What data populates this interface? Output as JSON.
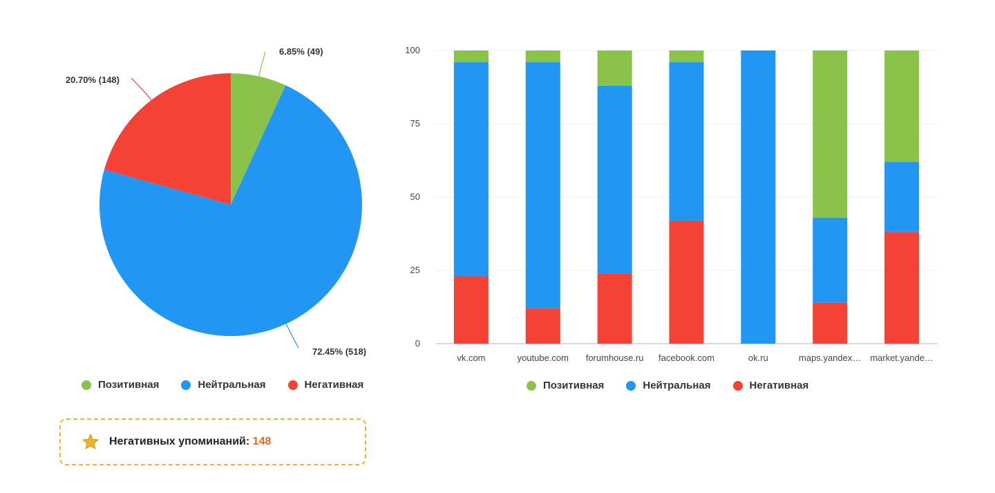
{
  "colors": {
    "positive": "#8bc34a",
    "neutral": "#2196f3",
    "negative": "#f44336",
    "accent": "#f0b429",
    "count": "#e06a1f"
  },
  "legend": {
    "positive": "Позитивная",
    "neutral": "Нейтральная",
    "negative": "Негативная"
  },
  "negative_box": {
    "icon": "star-icon",
    "label": "Негативных упоминаний:",
    "value": "148"
  },
  "chart_data": [
    {
      "type": "pie",
      "slices": [
        {
          "name": "Позитивная",
          "value": 49,
          "percent": 6.85,
          "label": "6.85% (49)",
          "color": "#8bc34a"
        },
        {
          "name": "Нейтральная",
          "value": 518,
          "percent": 72.45,
          "label": "72.45% (518)",
          "color": "#2196f3"
        },
        {
          "name": "Негативная",
          "value": 148,
          "percent": 20.7,
          "label": "20.70% (148)",
          "color": "#f44336"
        }
      ]
    },
    {
      "type": "bar",
      "stacked": true,
      "categories": [
        "vk.com",
        "youtube.com",
        "forumhouse.ru",
        "facebook.com",
        "ok.ru",
        "maps.yandex…",
        "market.yande…"
      ],
      "series": [
        {
          "name": "Негативная",
          "color": "#f44336",
          "values": [
            23,
            12,
            24,
            42,
            0,
            14,
            38
          ]
        },
        {
          "name": "Нейтральная",
          "color": "#2196f3",
          "values": [
            73,
            84,
            64,
            54,
            100,
            29,
            24
          ]
        },
        {
          "name": "Позитивная",
          "color": "#8bc34a",
          "values": [
            4,
            4,
            12,
            4,
            0,
            57,
            38
          ]
        }
      ],
      "ylim": [
        0,
        100
      ],
      "yticks": [
        "0",
        "25",
        "50",
        "75",
        "100"
      ],
      "grid": true,
      "legend_position": "bottom"
    }
  ]
}
